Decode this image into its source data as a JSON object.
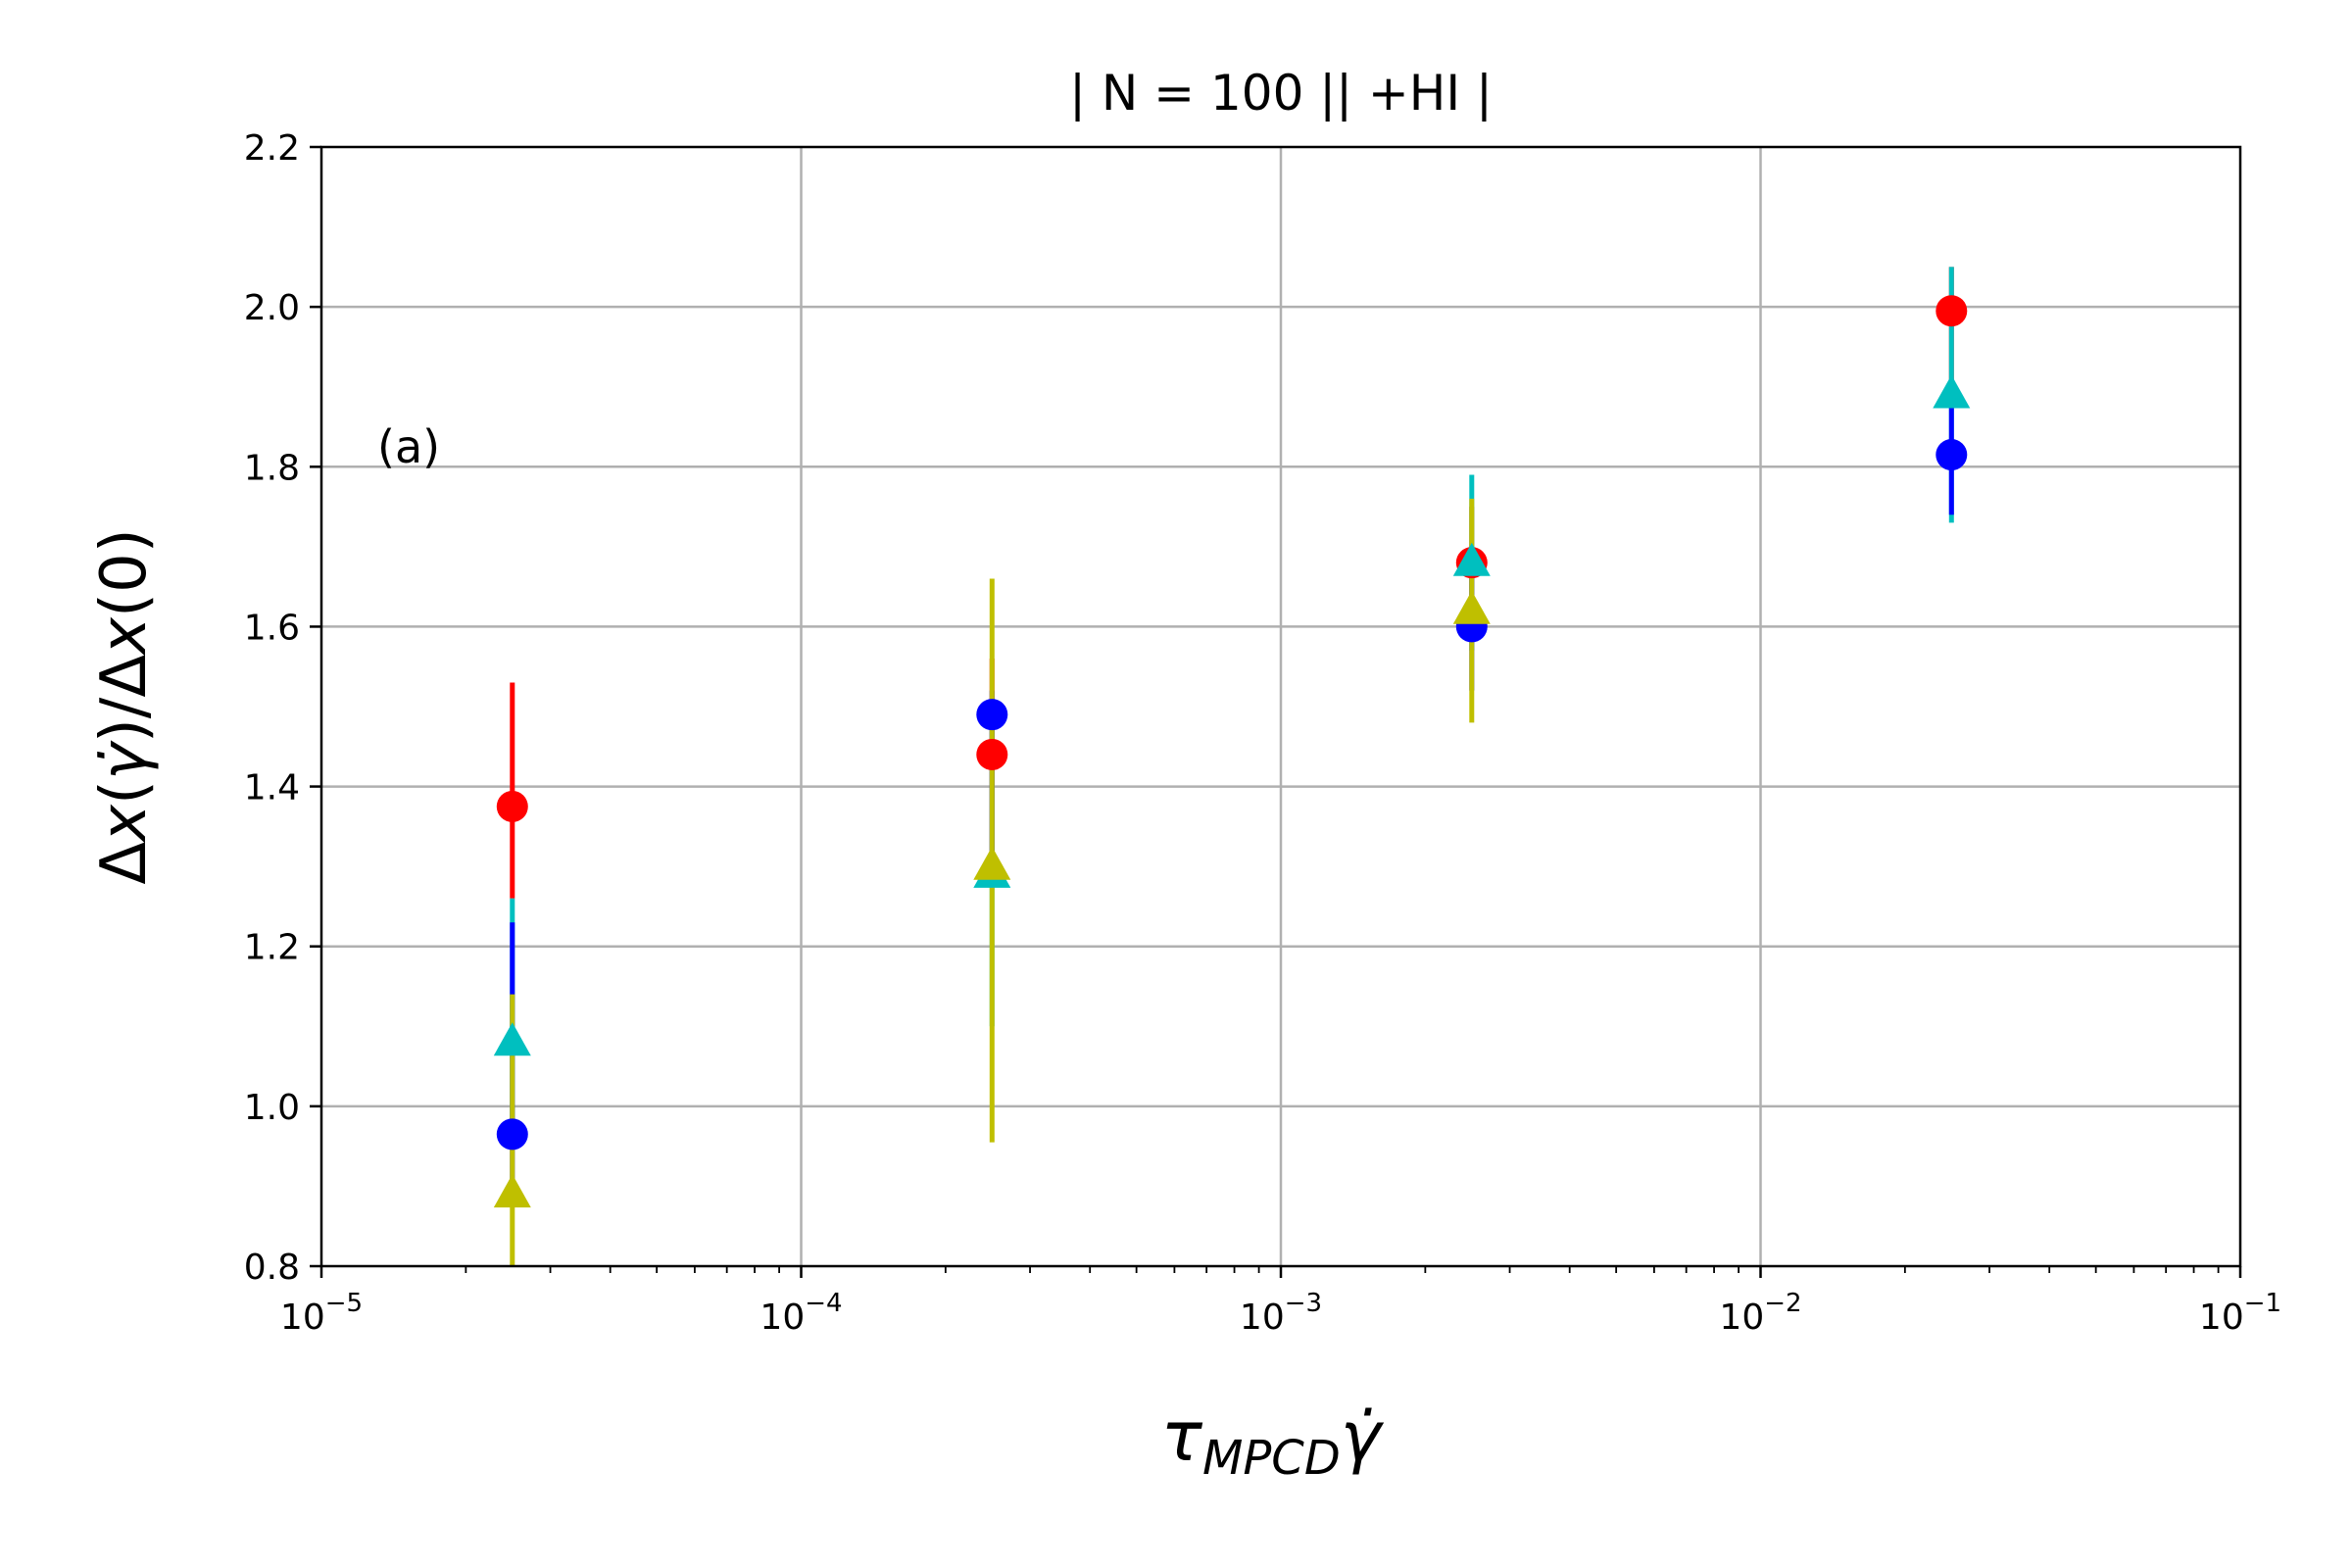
{
  "chart_data": {
    "type": "scatter",
    "title": "| N = 100 || +HI  |",
    "xlabel": "τMPCDγ̇",
    "ylabel": "Δx(γ̇)/Δx(0)",
    "x_scale": "log",
    "xlim": [
      1e-05,
      0.1
    ],
    "ylim": [
      0.8,
      2.2
    ],
    "grid": true,
    "x_ticks": [
      1e-05,
      0.0001,
      0.001,
      0.01,
      0.1
    ],
    "x_tick_labels": [
      {
        "base": "10",
        "exp": "−5"
      },
      {
        "base": "10",
        "exp": "−4"
      },
      {
        "base": "10",
        "exp": "−3"
      },
      {
        "base": "10",
        "exp": "−2"
      },
      {
        "base": "10",
        "exp": "−1"
      }
    ],
    "y_ticks": [
      0.8,
      1.0,
      1.2,
      1.4,
      1.6,
      1.8,
      2.0,
      2.2
    ],
    "y_tick_labels": [
      "0.8",
      "1.0",
      "1.2",
      "1.4",
      "1.6",
      "1.8",
      "2.0",
      "2.2"
    ],
    "annotation": "(a)",
    "series": [
      {
        "color": "#ff0000",
        "marker": "circle",
        "points": [
          {
            "x": 2.5e-05,
            "y": 1.375,
            "err_low": 1.26,
            "err_high": 1.53
          },
          {
            "x": 0.00025,
            "y": 1.44,
            "err_low": 1.3,
            "err_high": 1.56
          },
          {
            "x": 0.0025,
            "y": 1.68,
            "err_low": 1.6,
            "err_high": 1.75
          },
          {
            "x": 0.025,
            "y": 1.995,
            "err_low": 1.9,
            "err_high": 2.05
          }
        ]
      },
      {
        "color": "#00bfbf",
        "marker": "triangle",
        "points": [
          {
            "x": 2.5e-05,
            "y": 1.08,
            "err_low": 0.98,
            "err_high": 1.26
          },
          {
            "x": 0.00025,
            "y": 1.29,
            "err_low": 1.1,
            "err_high": 1.5
          },
          {
            "x": 0.0025,
            "y": 1.68,
            "err_low": 1.57,
            "err_high": 1.79
          },
          {
            "x": 0.025,
            "y": 1.89,
            "err_low": 1.73,
            "err_high": 2.05
          }
        ]
      },
      {
        "color": "#0000ff",
        "marker": "circle",
        "points": [
          {
            "x": 2.5e-05,
            "y": 0.965,
            "err_low": 0.88,
            "err_high": 1.23
          },
          {
            "x": 0.00025,
            "y": 1.49,
            "err_low": 1.3,
            "err_high": 1.52
          },
          {
            "x": 0.0025,
            "y": 1.6,
            "err_low": 1.52,
            "err_high": 1.69
          },
          {
            "x": 0.025,
            "y": 1.815,
            "err_low": 1.74,
            "err_high": 1.88
          }
        ]
      },
      {
        "color": "#bfbf00",
        "marker": "triangle",
        "points": [
          {
            "x": 2.5e-05,
            "y": 0.89,
            "err_low": 0.8,
            "err_high": 1.14
          },
          {
            "x": 0.00025,
            "y": 1.3,
            "err_low": 0.955,
            "err_high": 1.66
          },
          {
            "x": 0.0025,
            "y": 1.62,
            "err_low": 1.48,
            "err_high": 1.76
          }
        ]
      }
    ]
  }
}
